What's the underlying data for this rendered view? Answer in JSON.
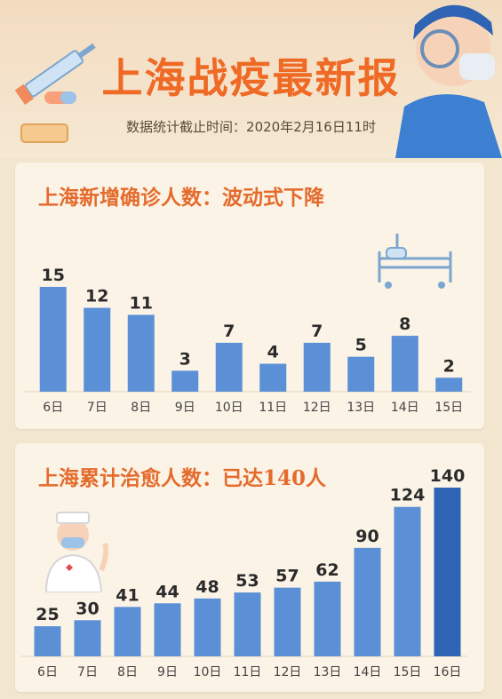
{
  "header": {
    "title": "上海战疫最新报",
    "subtitle": "数据统计截止时间：2020年2月16日11时"
  },
  "colors": {
    "accent": "#ef6a25",
    "bar": "#5b8fd6",
    "bar_highlight": "#2f63b3"
  },
  "chart_data": [
    {
      "type": "bar",
      "title": "上海新增确诊人数：波动式下降",
      "categories": [
        "6日",
        "7日",
        "8日",
        "9日",
        "10日",
        "11日",
        "12日",
        "13日",
        "14日",
        "15日"
      ],
      "values": [
        15,
        12,
        11,
        3,
        7,
        4,
        7,
        5,
        8,
        2
      ],
      "ylim": [
        0,
        15
      ],
      "grid": false
    },
    {
      "type": "bar",
      "title": "上海累计治愈人数：已达140人",
      "categories": [
        "6日",
        "7日",
        "8日",
        "9日",
        "10日",
        "11日",
        "12日",
        "13日",
        "14日",
        "15日",
        "16日"
      ],
      "values": [
        25,
        30,
        41,
        44,
        48,
        53,
        57,
        62,
        90,
        124,
        140
      ],
      "highlight_index": 10,
      "ylim": [
        0,
        140
      ],
      "grid": false
    }
  ]
}
